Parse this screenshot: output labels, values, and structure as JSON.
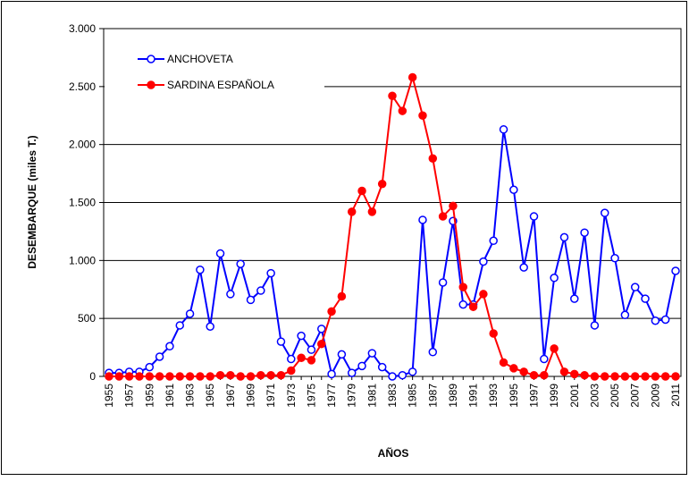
{
  "chart_data": {
    "type": "line",
    "x_label": "AÑOS",
    "y_label": "DESEMBARQUE  (miles T.)",
    "categories": [
      "1955",
      null,
      "1957",
      null,
      "1959",
      null,
      "1961",
      null,
      "1963",
      null,
      "1965",
      null,
      "1967",
      null,
      "1969",
      null,
      "1971",
      null,
      "1973",
      null,
      "1975",
      null,
      "1977",
      null,
      "1979",
      null,
      "1981",
      null,
      "1983",
      null,
      "1985",
      null,
      "1987",
      null,
      "1989",
      null,
      "1991",
      null,
      "1993",
      null,
      "1995",
      null,
      "1997",
      null,
      "1999",
      null,
      "2001",
      null,
      "2003",
      null,
      "2005",
      null,
      "2007",
      null,
      "2009",
      null,
      "2011"
    ],
    "series": [
      {
        "name": "ANCHOVETA",
        "color": "#0000ff",
        "marker": "open",
        "values": [
          30,
          30,
          40,
          40,
          80,
          170,
          260,
          440,
          540,
          920,
          430,
          1060,
          710,
          970,
          660,
          740,
          890,
          300,
          150,
          350,
          230,
          410,
          20,
          190,
          30,
          90,
          200,
          80,
          0,
          10,
          40,
          1350,
          210,
          810,
          1340,
          620,
          620,
          990,
          1170,
          2130,
          1610,
          940,
          1380,
          150,
          850,
          1200,
          670,
          1240,
          440,
          1410,
          1020,
          530,
          770,
          670,
          480,
          490,
          910
        ]
      },
      {
        "name": "SARDINA ESPAÑOLA",
        "color": "#ff0000",
        "marker": "filled",
        "values": [
          0,
          0,
          0,
          0,
          0,
          0,
          0,
          0,
          0,
          0,
          0,
          10,
          10,
          0,
          0,
          10,
          10,
          10,
          50,
          160,
          140,
          280,
          560,
          690,
          1420,
          1600,
          1420,
          1660,
          2420,
          2290,
          2580,
          2250,
          1880,
          1380,
          1470,
          770,
          600,
          710,
          370,
          120,
          70,
          40,
          10,
          10,
          240,
          40,
          20,
          10,
          0,
          0,
          0,
          0,
          0,
          0,
          0,
          0,
          0
        ]
      }
    ],
    "ylim": [
      0,
      3000
    ],
    "yticks": [
      0,
      500,
      {
        "value": 1000,
        "label": "1.000"
      },
      {
        "value": 1500,
        "label": "1.500"
      },
      {
        "value": 2000,
        "label": "2.000"
      },
      {
        "value": 2500,
        "label": "2.500"
      },
      {
        "value": 3000,
        "label": "3.000"
      }
    ],
    "grid": true,
    "legend": "top-left"
  }
}
